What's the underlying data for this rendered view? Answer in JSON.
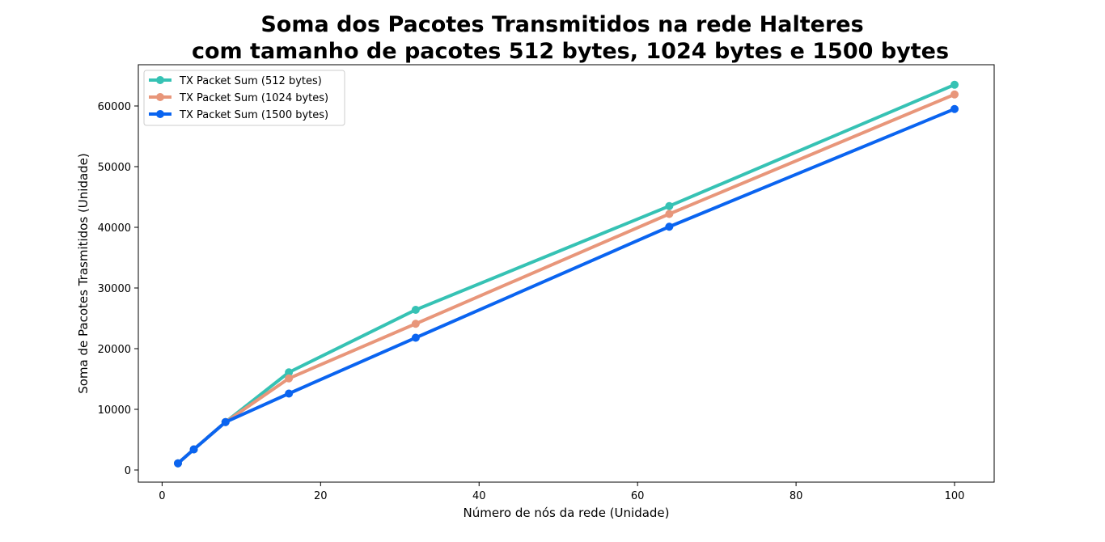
{
  "chart_data": {
    "type": "line",
    "title_lines": [
      "Soma dos Pacotes Transmitidos na rede Halteres",
      "com tamanho de pacotes 512 bytes, 1024 bytes e 1500 bytes"
    ],
    "xlabel": "Número de nós da rede (Unidade)",
    "ylabel": "Soma de Pacotes Trasmitidos (Unidade)",
    "xlim": [
      -3,
      105
    ],
    "ylim": [
      -2000,
      66800
    ],
    "xticks": [
      0,
      20,
      40,
      60,
      80,
      100
    ],
    "yticks": [
      0,
      10000,
      20000,
      30000,
      40000,
      50000,
      60000
    ],
    "grid": false,
    "legend_position": "top-left",
    "x": [
      2,
      4,
      8,
      16,
      32,
      64,
      100
    ],
    "series": [
      {
        "name": "TX Packet Sum (512 bytes)",
        "color": "#36c2b4",
        "values": [
          1100,
          3400,
          7900,
          16100,
          26400,
          43500,
          63500
        ]
      },
      {
        "name": "TX Packet Sum (1024 bytes)",
        "color": "#e8967a",
        "values": [
          1100,
          3400,
          7900,
          15100,
          24100,
          42200,
          61900
        ]
      },
      {
        "name": "TX Packet Sum (1500 bytes)",
        "color": "#0a64f0",
        "values": [
          1100,
          3400,
          7900,
          12600,
          21800,
          40100,
          59500
        ]
      }
    ]
  }
}
